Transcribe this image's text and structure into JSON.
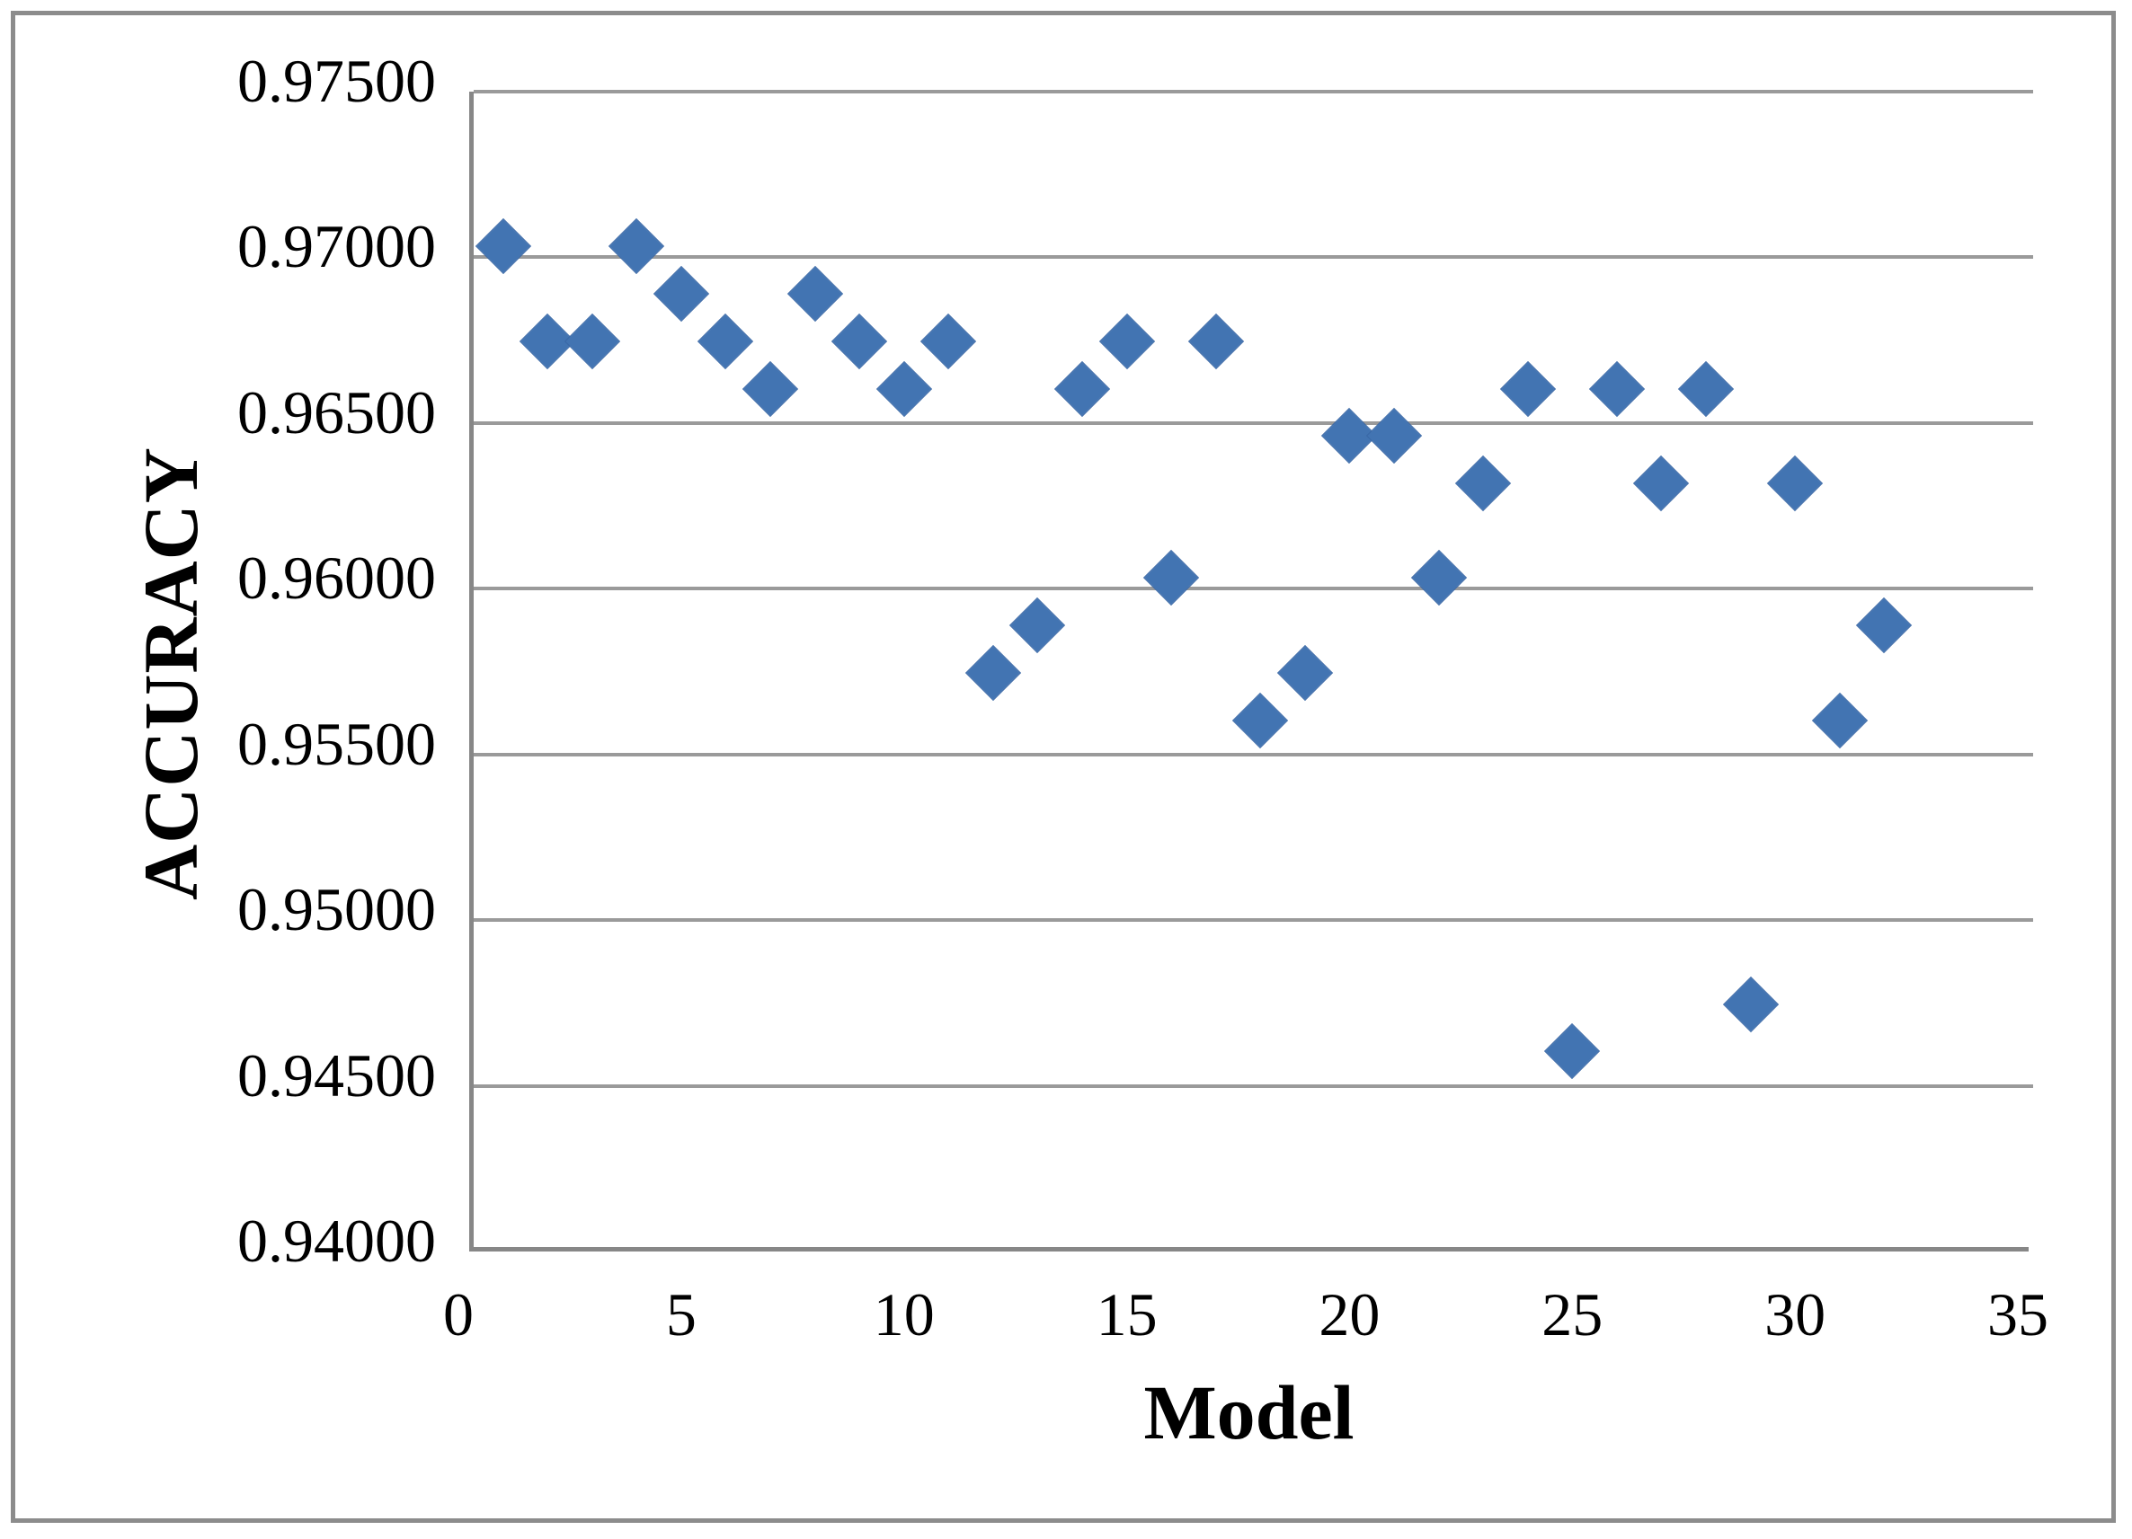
{
  "chart_data": {
    "type": "scatter",
    "title": "",
    "xlabel": "Model",
    "ylabel": "ACCURACY",
    "xlim": [
      0,
      35
    ],
    "ylim": [
      0.94,
      0.975
    ],
    "grid": "horizontal",
    "legend": "none",
    "marker": "diamond",
    "marker_color": "#4274b2",
    "gridline_color": "#9a9a9a",
    "x_ticks": [
      0,
      5,
      10,
      15,
      20,
      25,
      30,
      35
    ],
    "y_tick_labels": [
      "0.97500",
      "0.97000",
      "0.96500",
      "0.96000",
      "0.95500",
      "0.95000",
      "0.94500",
      "0.94000"
    ],
    "y_tick_values": [
      0.975,
      0.97,
      0.965,
      0.96,
      0.955,
      0.95,
      0.945,
      0.94
    ],
    "x": [
      1,
      2,
      3,
      4,
      5,
      6,
      7,
      8,
      9,
      10,
      11,
      12,
      13,
      14,
      15,
      16,
      17,
      18,
      19,
      20,
      21,
      22,
      23,
      24,
      25,
      26,
      27,
      28,
      29,
      30,
      31,
      32
    ],
    "y": [
      0.97,
      0.96714,
      0.96714,
      0.97,
      0.96857,
      0.96714,
      0.96571,
      0.96857,
      0.96714,
      0.96571,
      0.96714,
      0.95714,
      0.95857,
      0.96571,
      0.96714,
      0.96,
      0.96714,
      0.95571,
      0.95714,
      0.96429,
      0.96429,
      0.96,
      0.96286,
      0.96571,
      0.94571,
      0.96571,
      0.96286,
      0.96571,
      0.94714,
      0.96286,
      0.95571,
      0.95857
    ]
  }
}
